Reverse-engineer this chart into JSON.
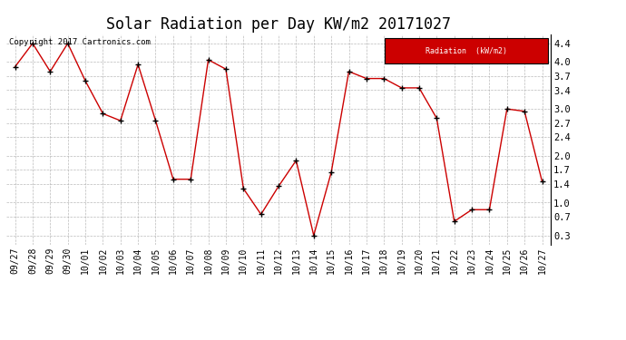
{
  "title": "Solar Radiation per Day KW/m2 20171027",
  "copyright": "Copyright 2017 Cartronics.com",
  "legend_label": "Radiation  (kW/m2)",
  "dates": [
    "09/27",
    "09/28",
    "09/29",
    "09/30",
    "10/01",
    "10/02",
    "10/03",
    "10/04",
    "10/05",
    "10/06",
    "10/07",
    "10/08",
    "10/09",
    "10/10",
    "10/11",
    "10/12",
    "10/13",
    "10/14",
    "10/15",
    "10/16",
    "10/17",
    "10/18",
    "10/19",
    "10/20",
    "10/21",
    "10/22",
    "10/23",
    "10/24",
    "10/25",
    "10/26",
    "10/27"
  ],
  "values": [
    3.9,
    4.4,
    3.8,
    4.4,
    3.6,
    2.9,
    2.75,
    3.95,
    2.75,
    1.5,
    1.5,
    4.05,
    3.85,
    1.3,
    0.75,
    1.35,
    1.9,
    0.3,
    1.65,
    3.8,
    3.65,
    3.65,
    3.45,
    3.45,
    2.8,
    0.6,
    0.85,
    0.85,
    3.0,
    2.95,
    1.45
  ],
  "line_color": "#cc0000",
  "marker_color": "#000000",
  "bg_color": "#ffffff",
  "grid_color": "#aaaaaa",
  "ylim": [
    0.1,
    4.6
  ],
  "yticks": [
    0.3,
    0.7,
    1.0,
    1.4,
    1.7,
    2.0,
    2.4,
    2.7,
    3.0,
    3.4,
    3.7,
    4.0,
    4.4
  ],
  "legend_bg": "#cc0000",
  "legend_text_color": "#ffffff",
  "title_fontsize": 12,
  "tick_fontsize": 7,
  "copyright_fontsize": 6.5
}
